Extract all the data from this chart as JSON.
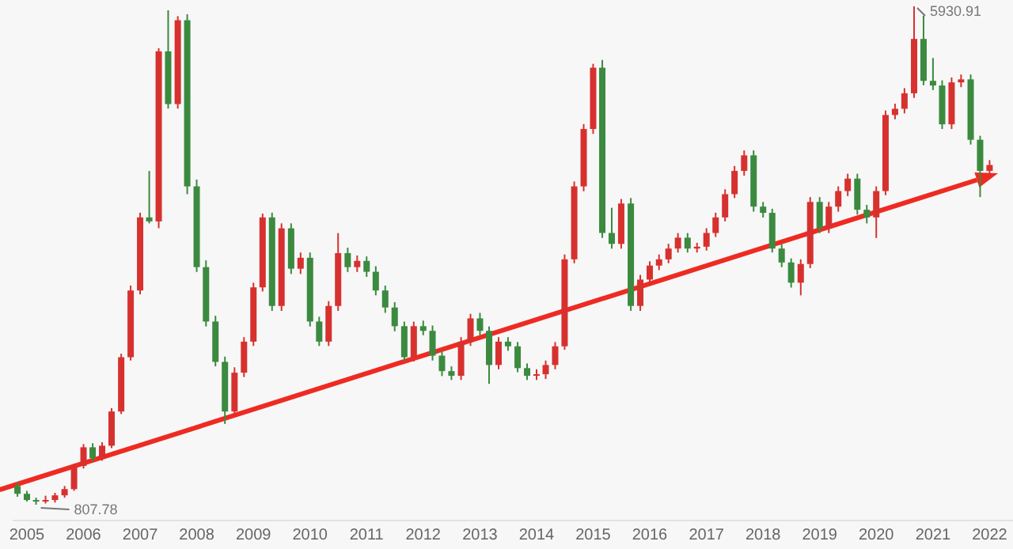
{
  "chart_data": {
    "type": "candlestick",
    "x": [
      "2004-11",
      "2005-01",
      "2005-03",
      "2005-05",
      "2005-07",
      "2005-09",
      "2005-11",
      "2006-01",
      "2006-03",
      "2006-05",
      "2006-07",
      "2006-09",
      "2006-11",
      "2007-01",
      "2007-03",
      "2007-05",
      "2007-07",
      "2007-09",
      "2007-11",
      "2008-01",
      "2008-03",
      "2008-05",
      "2008-07",
      "2008-09",
      "2008-11",
      "2009-01",
      "2009-03",
      "2009-05",
      "2009-07",
      "2009-09",
      "2009-11",
      "2010-01",
      "2010-03",
      "2010-05",
      "2010-07",
      "2010-09",
      "2010-11",
      "2011-01",
      "2011-03",
      "2011-05",
      "2011-07",
      "2011-09",
      "2011-11",
      "2012-01",
      "2012-03",
      "2012-05",
      "2012-07",
      "2012-09",
      "2012-11",
      "2013-01",
      "2013-03",
      "2013-05",
      "2013-07",
      "2013-09",
      "2013-11",
      "2014-01",
      "2014-03",
      "2014-05",
      "2014-07",
      "2014-09",
      "2014-11",
      "2015-01",
      "2015-03",
      "2015-05",
      "2015-07",
      "2015-09",
      "2015-11",
      "2016-01",
      "2016-03",
      "2016-05",
      "2016-07",
      "2016-09",
      "2016-11",
      "2017-01",
      "2017-03",
      "2017-05",
      "2017-07",
      "2017-09",
      "2017-11",
      "2018-01",
      "2018-03",
      "2018-05",
      "2018-07",
      "2018-09",
      "2018-11",
      "2019-01",
      "2019-03",
      "2019-05",
      "2019-07",
      "2019-09",
      "2019-11",
      "2020-01",
      "2020-03",
      "2020-05",
      "2020-07",
      "2020-09",
      "2020-11",
      "2021-01",
      "2021-03",
      "2021-05",
      "2021-07",
      "2021-09",
      "2021-11",
      "2022-01"
    ],
    "ohlc": [
      [
        1000,
        1040,
        890,
        920
      ],
      [
        920,
        950,
        840,
        856
      ],
      [
        856,
        880,
        807.78,
        840
      ],
      [
        840,
        900,
        820,
        856
      ],
      [
        856,
        930,
        830,
        904
      ],
      [
        904,
        1000,
        880,
        968
      ],
      [
        968,
        1230,
        950,
        1207
      ],
      [
        1207,
        1430,
        1180,
        1398
      ],
      [
        1398,
        1440,
        1250,
        1287
      ],
      [
        1287,
        1450,
        1260,
        1414
      ],
      [
        1414,
        1800,
        1390,
        1766
      ],
      [
        1766,
        2360,
        1740,
        2324
      ],
      [
        2324,
        3060,
        2290,
        3010
      ],
      [
        3010,
        3810,
        2970,
        3761
      ],
      [
        3761,
        4239,
        3700,
        3720
      ],
      [
        3720,
        5500,
        3650,
        5468
      ],
      [
        5468,
        5890,
        4880,
        4926
      ],
      [
        4926,
        5830,
        4880,
        5788
      ],
      [
        5788,
        5850,
        4000,
        4080
      ],
      [
        4080,
        4150,
        3200,
        3250
      ],
      [
        3250,
        3320,
        2640,
        2691
      ],
      [
        2691,
        2750,
        2230,
        2276
      ],
      [
        2276,
        2330,
        1638,
        1766
      ],
      [
        1766,
        2220,
        1720,
        2165
      ],
      [
        2165,
        2530,
        2120,
        2484
      ],
      [
        2484,
        3090,
        2440,
        3042
      ],
      [
        3042,
        3800,
        3000,
        3761
      ],
      [
        3761,
        3810,
        2800,
        2851
      ],
      [
        2851,
        3700,
        2800,
        3649
      ],
      [
        3649,
        3700,
        3180,
        3234
      ],
      [
        3234,
        3400,
        3180,
        3346
      ],
      [
        3346,
        3400,
        2640,
        2691
      ],
      [
        2691,
        2740,
        2440,
        2484
      ],
      [
        2484,
        2900,
        2440,
        2851
      ],
      [
        2851,
        3600,
        2800,
        3394
      ],
      [
        3394,
        3450,
        3200,
        3250
      ],
      [
        3250,
        3370,
        3200,
        3314
      ],
      [
        3314,
        3360,
        3150,
        3202
      ],
      [
        3202,
        3260,
        2960,
        3010
      ],
      [
        3010,
        3060,
        2780,
        2835
      ],
      [
        2835,
        2890,
        2590,
        2643
      ],
      [
        2643,
        2690,
        2280,
        2324
      ],
      [
        2324,
        2690,
        2280,
        2643
      ],
      [
        2643,
        2700,
        2550,
        2595
      ],
      [
        2595,
        2650,
        2290,
        2340
      ],
      [
        2340,
        2390,
        2130,
        2181
      ],
      [
        2181,
        2230,
        2090,
        2133
      ],
      [
        2133,
        2530,
        2090,
        2484
      ],
      [
        2484,
        2770,
        2440,
        2723
      ],
      [
        2723,
        2780,
        2550,
        2595
      ],
      [
        2595,
        2640,
        2050,
        2244
      ],
      [
        2244,
        2530,
        2200,
        2484
      ],
      [
        2484,
        2530,
        2390,
        2436
      ],
      [
        2436,
        2480,
        2170,
        2212
      ],
      [
        2212,
        2260,
        2090,
        2133
      ],
      [
        2133,
        2200,
        2090,
        2149
      ],
      [
        2149,
        2290,
        2100,
        2244
      ],
      [
        2244,
        2480,
        2200,
        2436
      ],
      [
        2436,
        3380,
        2400,
        3330
      ],
      [
        3330,
        4130,
        3290,
        4080
      ],
      [
        4080,
        4720,
        4030,
        4670
      ],
      [
        4670,
        5340,
        4620,
        5300
      ],
      [
        5300,
        5380,
        3550,
        3601
      ],
      [
        3601,
        3860,
        3440,
        3489
      ],
      [
        3489,
        3950,
        3440,
        3904
      ],
      [
        3904,
        3960,
        2800,
        2851
      ],
      [
        2851,
        3170,
        2800,
        3122
      ],
      [
        3122,
        3310,
        3070,
        3266
      ],
      [
        3266,
        3380,
        3220,
        3330
      ],
      [
        3330,
        3490,
        3290,
        3441
      ],
      [
        3441,
        3600,
        3400,
        3553
      ],
      [
        3553,
        3600,
        3400,
        3441
      ],
      [
        3441,
        3500,
        3400,
        3460
      ],
      [
        3460,
        3650,
        3420,
        3601
      ],
      [
        3601,
        3810,
        3560,
        3761
      ],
      [
        3761,
        4050,
        3720,
        4000
      ],
      [
        4000,
        4290,
        3960,
        4239
      ],
      [
        4239,
        4450,
        4190,
        4399
      ],
      [
        4399,
        4450,
        3820,
        3872
      ],
      [
        3872,
        3920,
        3760,
        3808
      ],
      [
        3808,
        3850,
        3400,
        3441
      ],
      [
        3441,
        3490,
        3250,
        3298
      ],
      [
        3298,
        3340,
        3040,
        3090
      ],
      [
        3090,
        3330,
        2960,
        3282
      ],
      [
        3282,
        3970,
        3240,
        3920
      ],
      [
        3920,
        3970,
        3600,
        3649
      ],
      [
        3649,
        3920,
        3600,
        3872
      ],
      [
        3872,
        4080,
        3820,
        4032
      ],
      [
        4032,
        4210,
        3980,
        4160
      ],
      [
        4160,
        4210,
        3790,
        3840
      ],
      [
        3840,
        3890,
        3700,
        3761
      ],
      [
        3761,
        4080,
        3550,
        4032
      ],
      [
        4032,
        4860,
        3990,
        4814
      ],
      [
        4814,
        4930,
        4770,
        4878
      ],
      [
        4878,
        5090,
        4830,
        5037
      ],
      [
        5037,
        5930.91,
        4990,
        5596
      ],
      [
        5596,
        5835,
        5120,
        5165
      ],
      [
        5165,
        5400,
        5070,
        5117
      ],
      [
        5117,
        5170,
        4670,
        4718
      ],
      [
        4718,
        5200,
        4670,
        5149
      ],
      [
        5149,
        5230,
        5100,
        5180
      ],
      [
        5180,
        5230,
        4510,
        4559
      ],
      [
        4559,
        4600,
        3970,
        4239
      ],
      [
        4239,
        4350,
        4200,
        4300
      ]
    ],
    "xlim": [
      "2004-10",
      "2022-06"
    ],
    "xticks": [
      "2005",
      "2006",
      "2007",
      "2008",
      "2009",
      "2010",
      "2011",
      "2012",
      "2013",
      "2014",
      "2015",
      "2016",
      "2017",
      "2018",
      "2019",
      "2020",
      "2021",
      "2022"
    ],
    "annotations": [
      {
        "text": "5930.91",
        "x": "2020-09",
        "y": 5930.91
      },
      {
        "text": "807.78",
        "x": "2005-03",
        "y": 807.78
      }
    ]
  }
}
